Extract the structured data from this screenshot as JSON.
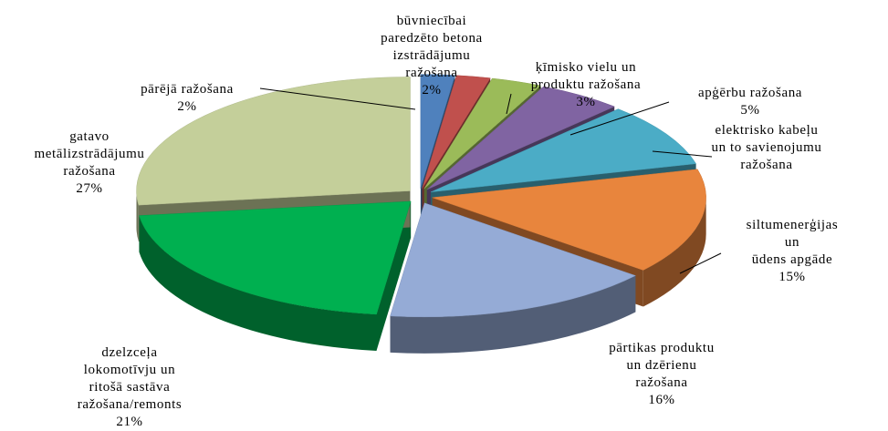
{
  "chart_data": {
    "type": "pie",
    "categories": [
      "pārējā ražošana",
      "būvniecībai\nparedzēto betona\nizstrādājumu\nražošana",
      "ķīmisko vielu un\nproduktu ražošana",
      "apģērbu ražošana",
      "elektrisko kabeļu\nun to savienojumu\nražošana",
      "siltumenerģijas un\nūdens apgāde",
      "pārtikas produktu\nun dzērienu\nražošana",
      "dzelzceļa\nlokomotīvju un\nritošā sastāva\nražošana/remonts",
      "gatavo\nmetālizstrādājumu\nražošana"
    ],
    "values": [
      2,
      2,
      3,
      5,
      9,
      15,
      16,
      21,
      27
    ],
    "value_labels": [
      "2%",
      "2%",
      "3%",
      "5%",
      null,
      "15%",
      "16%",
      "21%",
      "27%"
    ],
    "colors": [
      "#4f81bd",
      "#c0504d",
      "#9bbb59",
      "#8064a2",
      "#4bacc6",
      "#e8853d",
      "#95abd6",
      "#00b050",
      "#c4cf9a"
    ]
  }
}
